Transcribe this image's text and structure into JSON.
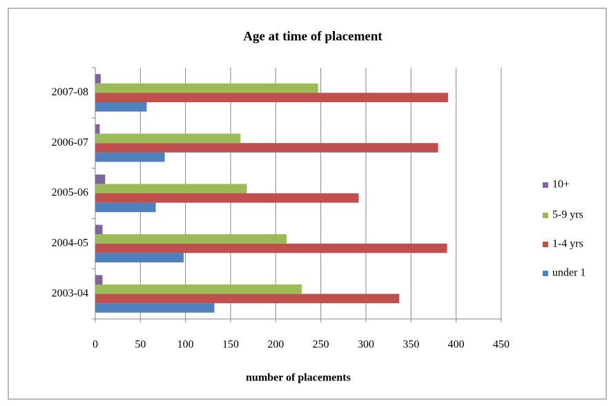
{
  "chart_data": {
    "type": "bar",
    "orientation": "horizontal",
    "title": "Age at time of placement",
    "xlabel": "number of placements",
    "categories": [
      "2003-04",
      "2004-05",
      "2005-06",
      "2006-07",
      "2007-08"
    ],
    "series": [
      {
        "name": "under 1",
        "color": "#4f81bd",
        "values": [
          132,
          98,
          67,
          77,
          57
        ]
      },
      {
        "name": "1-4 yrs",
        "color": "#c0504d",
        "values": [
          337,
          390,
          292,
          380,
          391
        ]
      },
      {
        "name": "5-9 yrs",
        "color": "#9bbb59",
        "values": [
          229,
          212,
          168,
          161,
          247
        ]
      },
      {
        "name": "10+",
        "color": "#8064a2",
        "values": [
          8,
          8,
          11,
          5,
          6
        ]
      }
    ],
    "xlim": [
      0,
      450
    ],
    "xticks": [
      0,
      50,
      100,
      150,
      200,
      250,
      300,
      350,
      400,
      450
    ],
    "grid": true,
    "legend": "right"
  }
}
